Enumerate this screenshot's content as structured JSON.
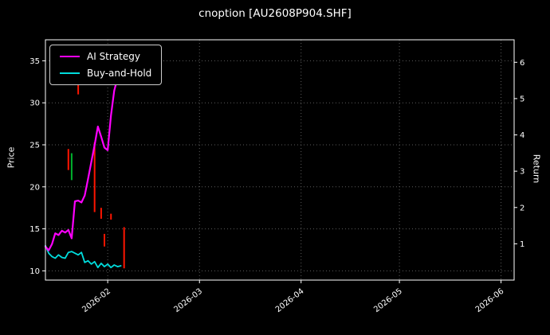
{
  "chart_data": {
    "type": "line",
    "title": "cnoption [AU2608P904.SHF]",
    "ylabel_left": "Price",
    "ylabel_right": "Return",
    "background": "#000000",
    "grid": "dotted",
    "legend_position": "upper-left",
    "x_range": [
      "2026-01-13",
      "2026-06-05"
    ],
    "x_ticks": [
      "2026-02",
      "2026-03",
      "2026-04",
      "2026-05",
      "2026-06"
    ],
    "price_range": [
      8.9,
      37.5
    ],
    "price_ticks": [
      10,
      15,
      20,
      25,
      30,
      35
    ],
    "return_range": [
      0.0,
      6.62
    ],
    "return_ticks": [
      1,
      2,
      3,
      4,
      5,
      6
    ],
    "series": [
      {
        "name": "AI Strategy",
        "color": "#ff00ff",
        "axis": "return",
        "dates": [
          "2026-01-13",
          "2026-01-14",
          "2026-01-15",
          "2026-01-16",
          "2026-01-17",
          "2026-01-18",
          "2026-01-19",
          "2026-01-20",
          "2026-01-21",
          "2026-01-22",
          "2026-01-23",
          "2026-01-24",
          "2026-01-25",
          "2026-01-26",
          "2026-01-27",
          "2026-01-28",
          "2026-01-29",
          "2026-01-30",
          "2026-01-31",
          "2026-02-01",
          "2026-02-02",
          "2026-02-03",
          "2026-02-04",
          "2026-02-05"
        ],
        "values": [
          0.92,
          0.82,
          0.99,
          1.29,
          1.24,
          1.36,
          1.31,
          1.38,
          1.15,
          2.17,
          2.19,
          2.14,
          2.33,
          2.79,
          3.26,
          3.72,
          4.23,
          3.95,
          3.65,
          3.58,
          4.53,
          5.22,
          5.57,
          6.08
        ]
      },
      {
        "name": "Buy-and-Hold",
        "color": "#00dddd",
        "axis": "price",
        "dates": [
          "2026-01-13",
          "2026-01-14",
          "2026-01-15",
          "2026-01-16",
          "2026-01-17",
          "2026-01-18",
          "2026-01-19",
          "2026-01-20",
          "2026-01-21",
          "2026-01-22",
          "2026-01-23",
          "2026-01-24",
          "2026-01-25",
          "2026-01-26",
          "2026-01-27",
          "2026-01-28",
          "2026-01-29",
          "2026-01-30",
          "2026-01-31",
          "2026-02-01",
          "2026-02-02",
          "2026-02-03",
          "2026-02-04",
          "2026-02-05"
        ],
        "values": [
          13.0,
          12.1,
          11.7,
          11.5,
          11.9,
          11.6,
          11.5,
          12.2,
          12.3,
          12.1,
          11.9,
          12.2,
          11.0,
          11.2,
          10.8,
          11.1,
          10.4,
          10.9,
          10.5,
          10.8,
          10.4,
          10.7,
          10.5,
          10.6
        ]
      }
    ],
    "candles": [
      {
        "date": "2026-01-20",
        "low": 22.0,
        "high": 24.5,
        "color": "#ff1500"
      },
      {
        "date": "2026-01-21",
        "low": 20.8,
        "high": 24.0,
        "color": "#00b22d"
      },
      {
        "date": "2026-01-23",
        "low": 31.0,
        "high": 32.2,
        "color": "#ff1500"
      },
      {
        "date": "2026-01-28",
        "low": 17.0,
        "high": 25.3,
        "color": "#ff1500"
      },
      {
        "date": "2026-01-30",
        "low": 16.2,
        "high": 17.5,
        "color": "#ff1500"
      },
      {
        "date": "2026-01-31",
        "low": 12.9,
        "high": 14.4,
        "color": "#ff1500"
      },
      {
        "date": "2026-02-02",
        "low": 16.1,
        "high": 16.8,
        "color": "#ff1500"
      },
      {
        "date": "2026-02-06",
        "low": 10.3,
        "high": 15.2,
        "color": "#ff1500"
      }
    ]
  }
}
